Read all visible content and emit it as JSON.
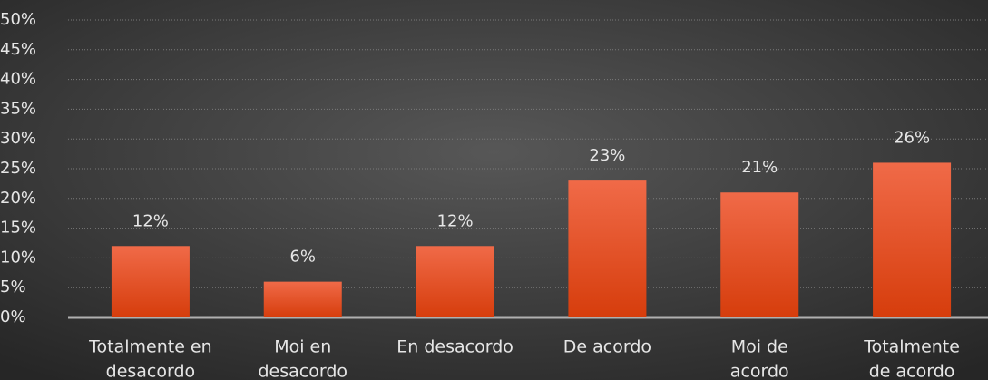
{
  "chart_data": {
    "type": "bar",
    "categories": [
      [
        "Totalmente en",
        "desacordo"
      ],
      [
        "Moi en",
        "desacordo"
      ],
      [
        "En desacordo"
      ],
      [
        "De acordo"
      ],
      [
        "Moi de",
        "acordo"
      ],
      [
        "Totalmente",
        "de acordo"
      ]
    ],
    "values": [
      12,
      6,
      12,
      23,
      21,
      26
    ],
    "value_labels": [
      "12%",
      "6%",
      "12%",
      "23%",
      "21%",
      "26%"
    ],
    "color": "#e8502a",
    "ylim": [
      0,
      50
    ],
    "yticks": [
      {
        "value": 0,
        "label": "0%"
      },
      {
        "value": 5,
        "label": "5%"
      },
      {
        "value": 10,
        "label": "10%"
      },
      {
        "value": 15,
        "label": "15%"
      },
      {
        "value": 20,
        "label": "20%"
      },
      {
        "value": 25,
        "label": "25%"
      },
      {
        "value": 30,
        "label": "30%"
      },
      {
        "value": 35,
        "label": "35%"
      },
      {
        "value": 40,
        "label": "40%"
      },
      {
        "value": 45,
        "label": "45%"
      },
      {
        "value": 50,
        "label": "50%"
      }
    ],
    "grid": true
  }
}
